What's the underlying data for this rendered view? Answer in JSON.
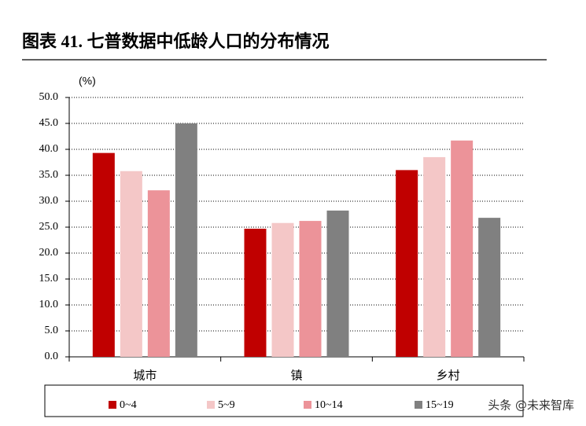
{
  "chart_data": {
    "type": "bar",
    "title": "图表 41. 七普数据中低龄人口的分布情况",
    "y_label": "(%)",
    "categories": [
      "城市",
      "镇",
      "乡村"
    ],
    "series": [
      {
        "name": "0~4",
        "color": "#c00000",
        "values": [
          39.3,
          24.7,
          36.0
        ]
      },
      {
        "name": "5~9",
        "color": "#f4c7c7",
        "values": [
          35.8,
          25.8,
          38.5
        ]
      },
      {
        "name": "10~14",
        "color": "#ec9399",
        "values": [
          32.1,
          26.2,
          41.7
        ]
      },
      {
        "name": "15~19",
        "color": "#808080",
        "values": [
          45.0,
          28.2,
          26.8
        ]
      }
    ],
    "ylim": [
      0,
      50
    ],
    "yticks": [
      {
        "value": 0,
        "label": "0.0"
      },
      {
        "value": 5,
        "label": "5.0"
      },
      {
        "value": 10,
        "label": "10.0"
      },
      {
        "value": 15,
        "label": "15.0"
      },
      {
        "value": 20,
        "label": "20.0"
      },
      {
        "value": 25,
        "label": "25.0"
      },
      {
        "value": 30,
        "label": "30.0"
      },
      {
        "value": 35,
        "label": "35.0"
      },
      {
        "value": 40,
        "label": "40.0"
      },
      {
        "value": 45,
        "label": "45.0"
      },
      {
        "value": 50,
        "label": "50.0"
      }
    ],
    "grid": true,
    "watermark": "头条 @未来智库"
  }
}
